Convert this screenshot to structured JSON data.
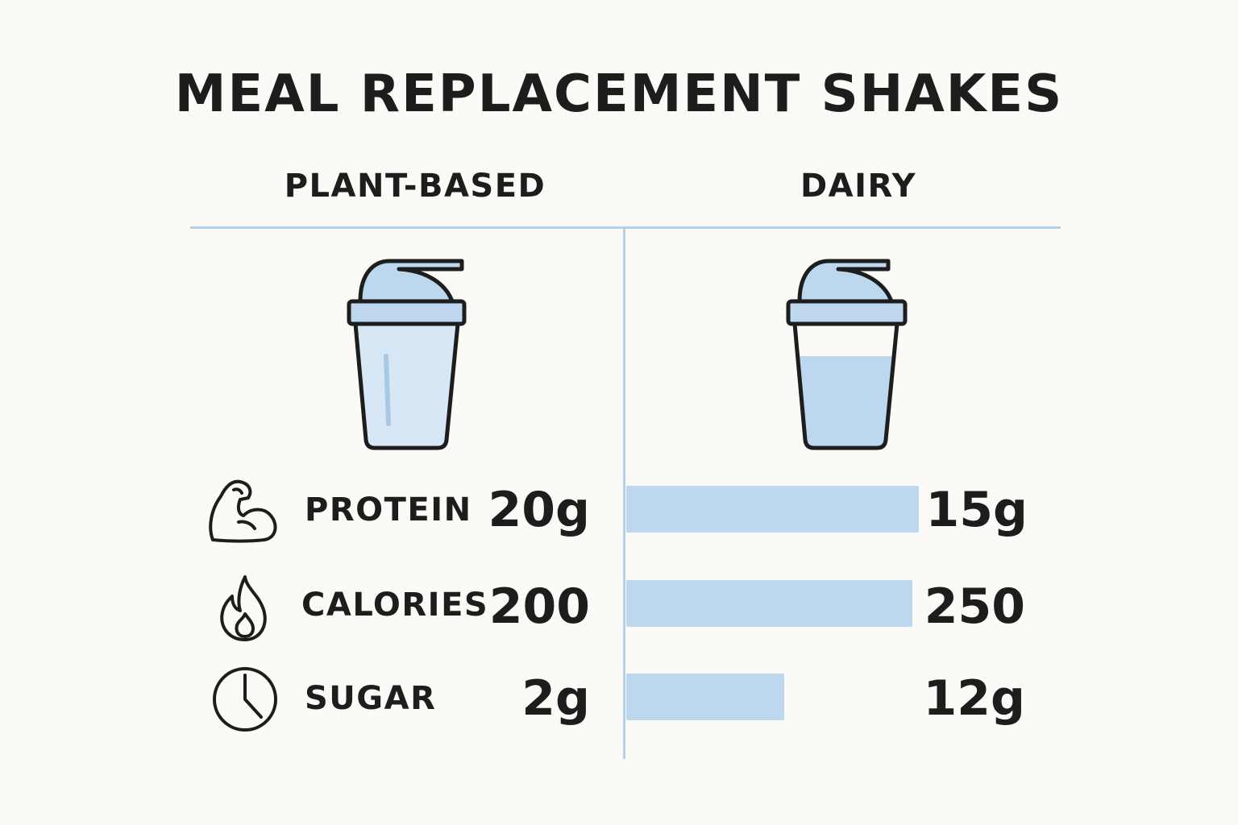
{
  "title": "MEAL REPLACEMENT SHAKES",
  "columns": {
    "left": "PLANT-BASED",
    "right": "DAIRY"
  },
  "colors": {
    "accent": "#bdd7ee",
    "divider": "#b6d0e8",
    "ink": "#1d1d1d",
    "background": "#fbfaf6"
  },
  "icons": [
    "shaker-bottle-icon",
    "flexed-arm-icon",
    "flame-icon",
    "clock-icon"
  ],
  "metrics": [
    {
      "label": "PROTEIN",
      "plant_text": "20g",
      "dairy_text": "15g",
      "icon": "flexed-arm-icon"
    },
    {
      "label": "CALORIES",
      "plant_text": "200",
      "dairy_text": "250",
      "icon": "flame-icon"
    },
    {
      "label": "SUGAR",
      "plant_text": "2g",
      "dairy_text": "12g",
      "icon": "clock-icon"
    }
  ],
  "chart_data": {
    "type": "bar",
    "orientation": "horizontal",
    "categories": [
      "PROTEIN",
      "CALORIES",
      "SUGAR"
    ],
    "series": [
      {
        "name": "PLANT-BASED",
        "values": [
          20,
          200,
          2
        ],
        "units": [
          "g",
          "",
          "g"
        ]
      },
      {
        "name": "DAIRY",
        "values": [
          15,
          250,
          12
        ],
        "units": [
          "g",
          "",
          "g"
        ]
      }
    ],
    "bar_fill_fraction": [
      0.98,
      0.96,
      0.53
    ],
    "grid": false,
    "legend": "none"
  }
}
